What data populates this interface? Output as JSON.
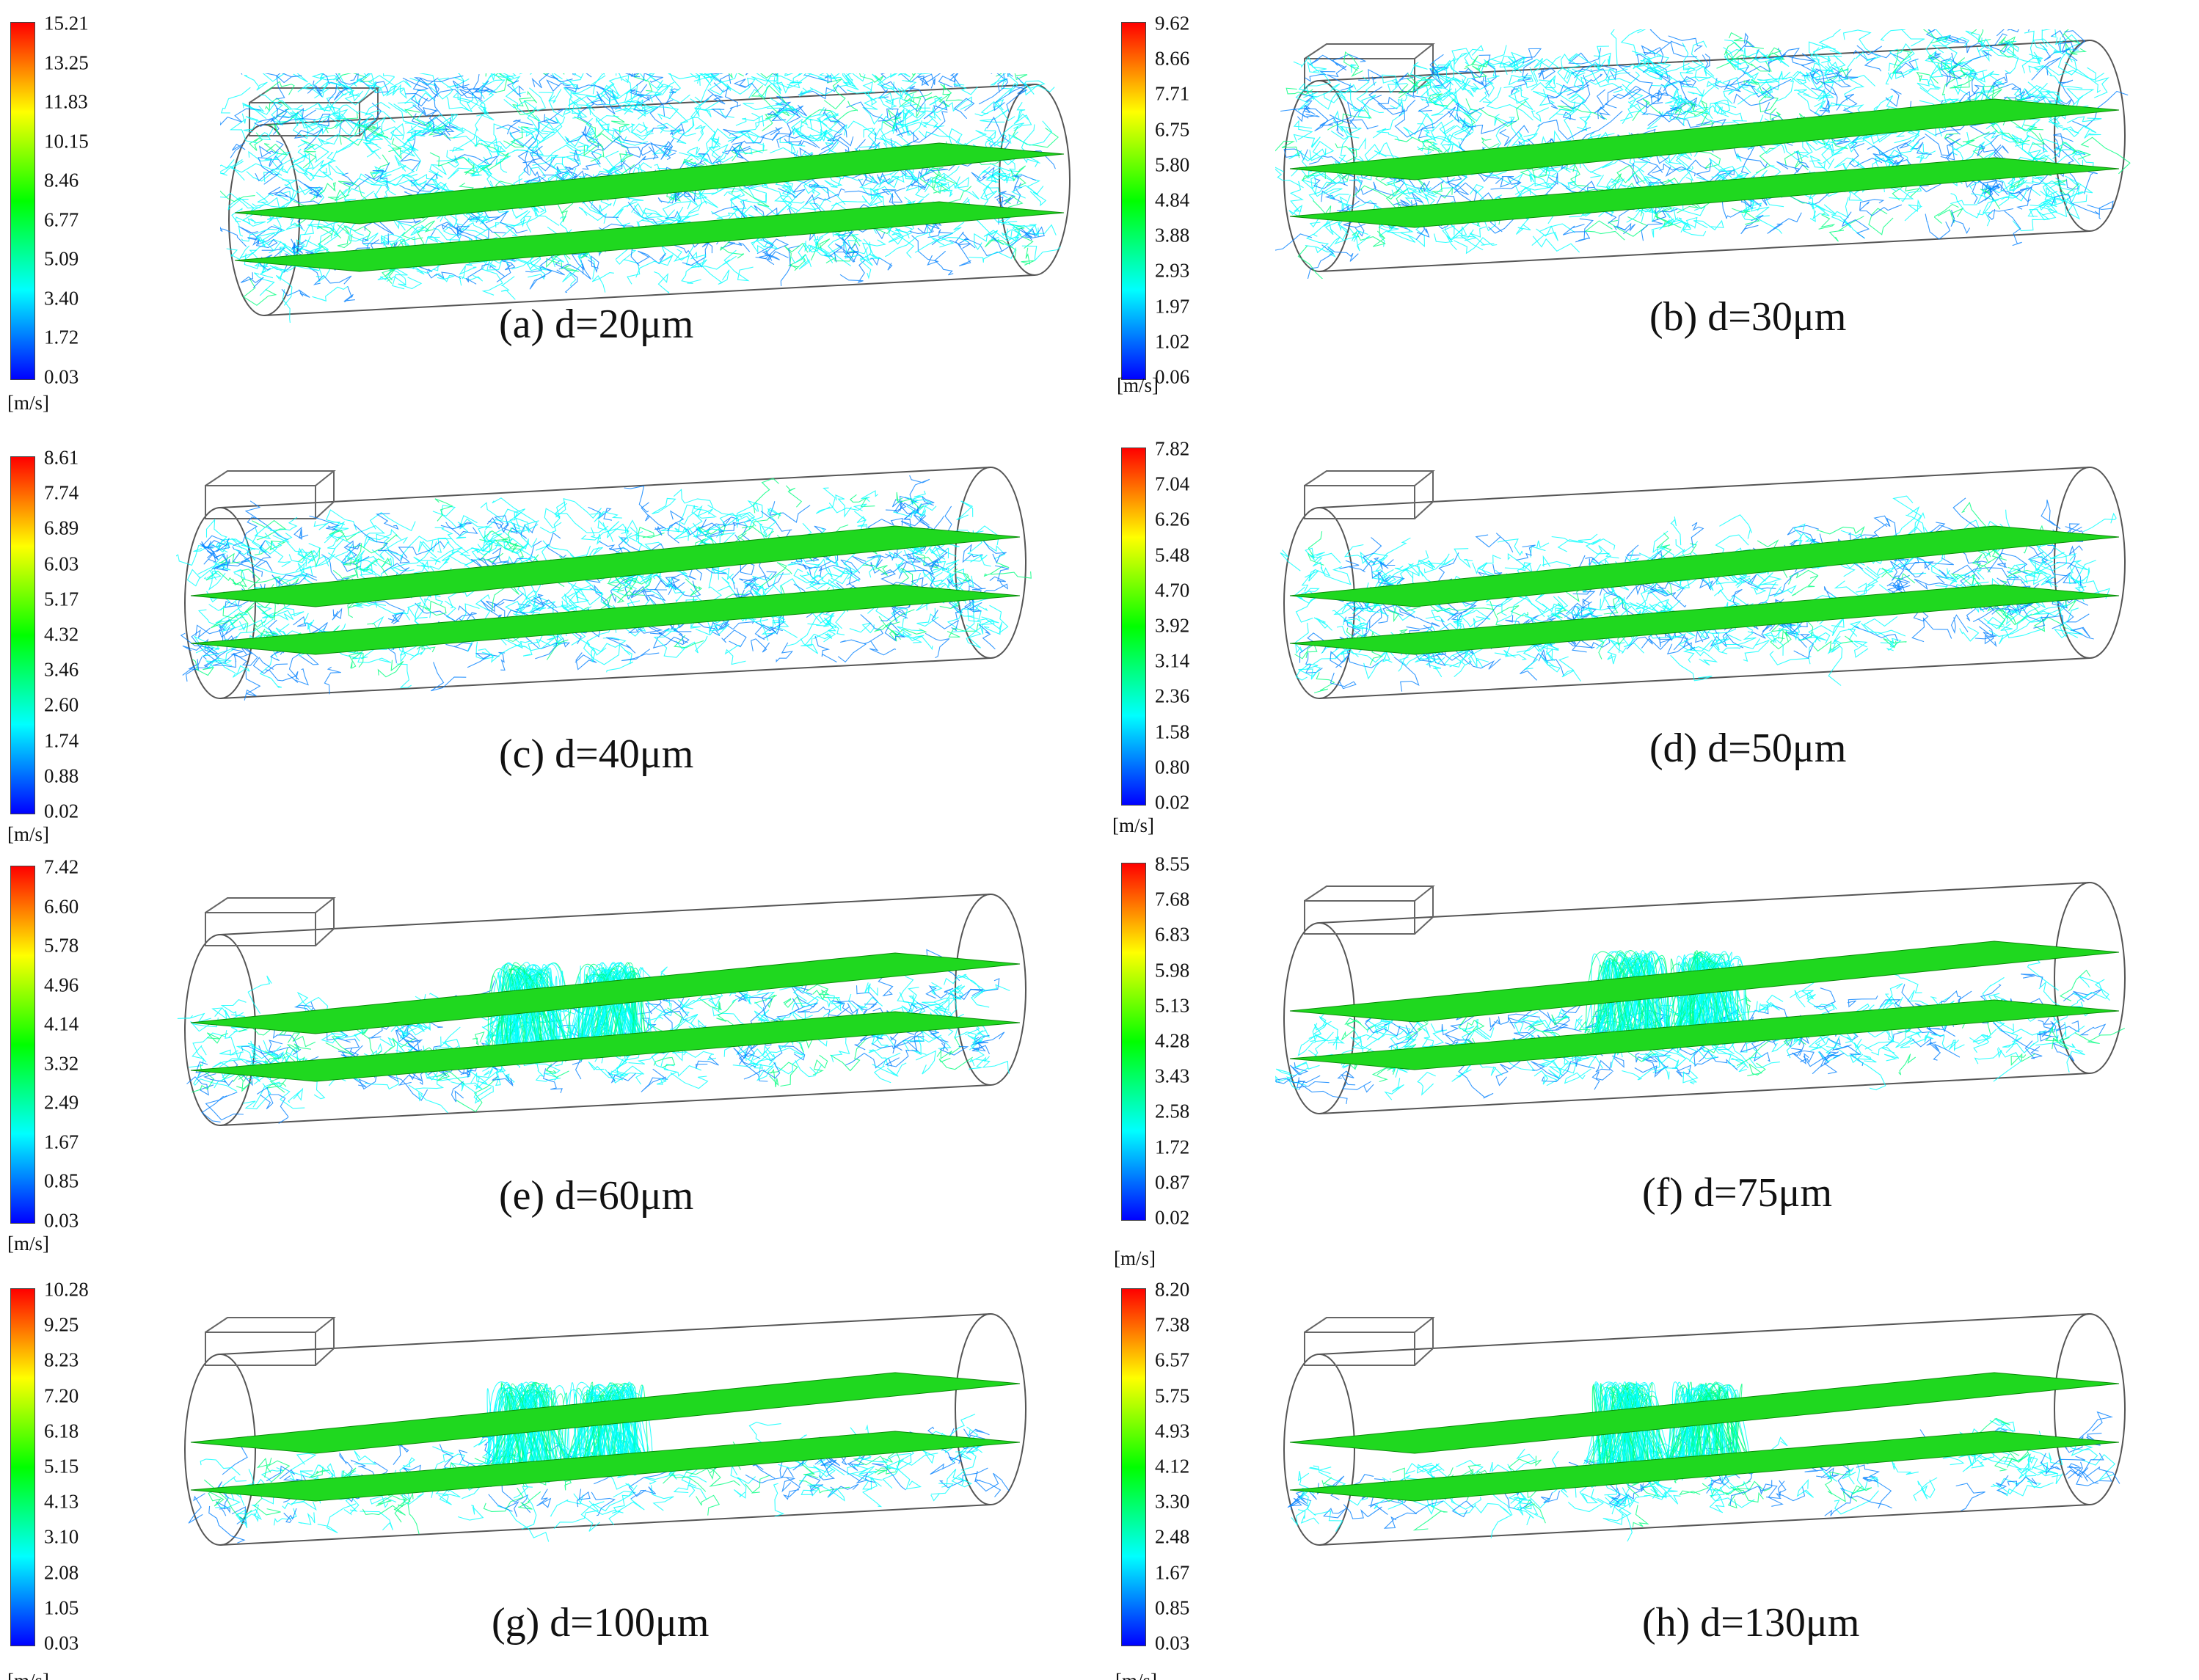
{
  "colormap": [
    "#0000ff",
    "#0080ff",
    "#00ffff",
    "#00ff80",
    "#00ff00",
    "#80ff00",
    "#ffff00",
    "#ff8000",
    "#ff0000"
  ],
  "panels": [
    {
      "caption": "(a)  d=20μm",
      "unit": "[m/s]",
      "ticks": [
        "15.21",
        "13.25",
        "11.83",
        "10.15",
        "8.46",
        "6.77",
        "5.09",
        "3.40",
        "1.72",
        "0.03"
      ],
      "particle_density": 1.0
    },
    {
      "caption": "(b)  d=30μm",
      "unit": "[m/s]",
      "ticks": [
        "9.62",
        "8.66",
        "7.71",
        "6.75",
        "5.80",
        "4.84",
        "3.88",
        "2.93",
        "1.97",
        "1.02",
        "0.06"
      ],
      "particle_density": 0.8
    },
    {
      "caption": "(c)  d=40μm",
      "unit": "[m/s]",
      "ticks": [
        "8.61",
        "7.74",
        "6.89",
        "6.03",
        "5.17",
        "4.32",
        "3.46",
        "2.60",
        "1.74",
        "0.88",
        "0.02"
      ],
      "particle_density": 0.6
    },
    {
      "caption": "(d)  d=50μm",
      "unit": "[m/s]",
      "ticks": [
        "7.82",
        "7.04",
        "6.26",
        "5.48",
        "4.70",
        "3.92",
        "3.14",
        "2.36",
        "1.58",
        "0.80",
        "0.02"
      ],
      "particle_density": 0.45
    },
    {
      "caption": "(e)  d=60μm",
      "unit": "[m/s]",
      "ticks": [
        "7.42",
        "6.60",
        "5.78",
        "4.96",
        "4.14",
        "3.32",
        "2.49",
        "1.67",
        "0.85",
        "0.03"
      ],
      "particle_density": 0.3
    },
    {
      "caption": "(f)  d=75μm",
      "unit": "[m/s]",
      "ticks": [
        "8.55",
        "7.68",
        "6.83",
        "5.98",
        "5.13",
        "4.28",
        "3.43",
        "2.58",
        "1.72",
        "0.87",
        "0.02"
      ],
      "particle_density": 0.2
    },
    {
      "caption": "(g)  d=100μm",
      "unit": "[m/s]",
      "ticks": [
        "10.28",
        "9.25",
        "8.23",
        "7.20",
        "6.18",
        "5.15",
        "4.13",
        "3.10",
        "2.08",
        "1.05",
        "0.03"
      ],
      "particle_density": 0.12
    },
    {
      "caption": "(h)  d=130μm",
      "unit": "[m/s]",
      "ticks": [
        "8.20",
        "7.38",
        "6.57",
        "5.75",
        "4.93",
        "4.12",
        "3.30",
        "2.48",
        "1.67",
        "0.85",
        "0.03"
      ],
      "particle_density": 0.1
    }
  ]
}
